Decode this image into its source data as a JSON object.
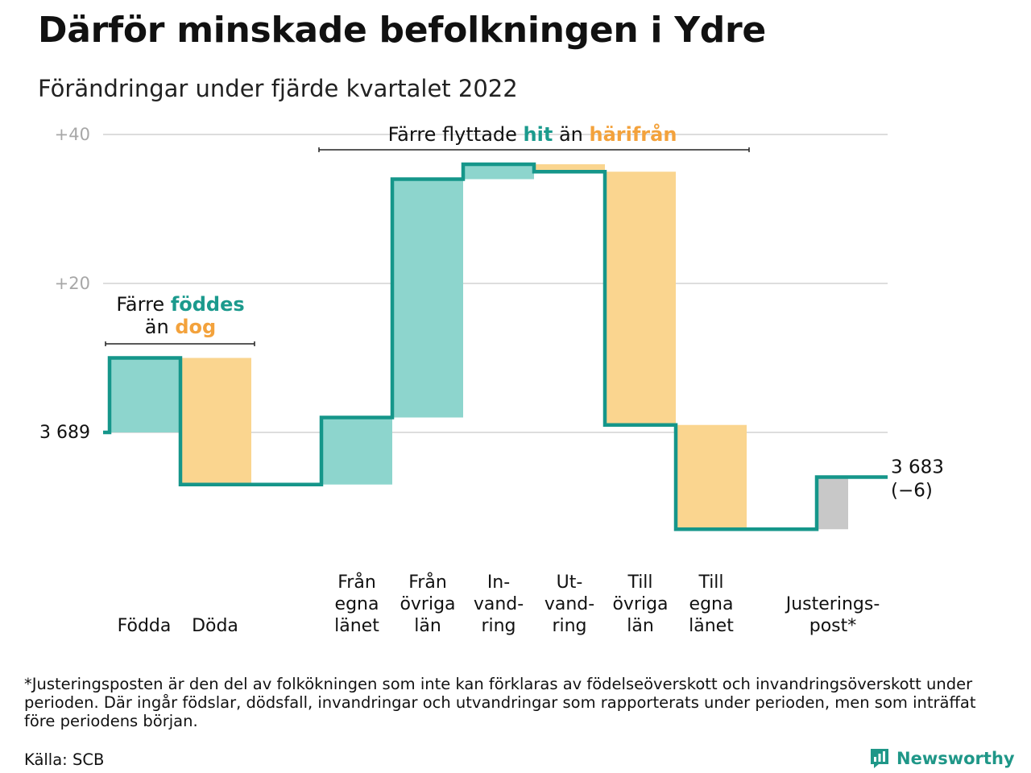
{
  "title": "Därför minskade befolkningen i Ydre",
  "subtitle": "Förändringar under fjärde kvartalet 2022",
  "colors": {
    "line": "#15968a",
    "plus": "#8dd5cd",
    "minus": "#fad58f",
    "adjust": "#c8c8c8",
    "hit": "#1b9a8d",
    "harifran": "#f3a23c",
    "grid": "#dddddd",
    "ticktext": "#a7a7a7"
  },
  "chart_data": {
    "type": "waterfall",
    "title": "Därför minskade befolkningen i Ydre",
    "subtitle": "Förändringar under fjärde kvartalet 2022",
    "start_value": 3689,
    "start_label": "3 689",
    "end_value": 3683,
    "end_label": "3 683",
    "end_change_label": "(−6)",
    "y_tick_labels": [
      "+40",
      "+20"
    ],
    "y_ticks": [
      40,
      20
    ],
    "ylim": [
      -15,
      40
    ],
    "grid": true,
    "steps": [
      {
        "label": "Födda",
        "value": 10,
        "kind": "plus"
      },
      {
        "label": "Döda",
        "value": -17,
        "kind": "minus"
      },
      {
        "label": "Från egna länet",
        "value": 9,
        "kind": "plus"
      },
      {
        "label": "Från övriga län",
        "value": 32,
        "kind": "plus"
      },
      {
        "label": "In-vandring",
        "value": 2,
        "kind": "plus"
      },
      {
        "label": "Ut-vandring",
        "value": -1,
        "kind": "minus"
      },
      {
        "label": "Till övriga län",
        "value": -34,
        "kind": "minus"
      },
      {
        "label": "Till egna länet",
        "value": -14,
        "kind": "minus"
      },
      {
        "label": "Justerings-post*",
        "value": 7,
        "kind": "adjust"
      }
    ],
    "annotations": [
      {
        "id": "fodda",
        "parts": [
          "Färre ",
          "föddes",
          "än ",
          "dog"
        ]
      },
      {
        "id": "flytt",
        "parts": [
          "Färre flyttade ",
          "hit",
          " än ",
          "härifrån"
        ]
      }
    ]
  },
  "x_label_lines": [
    [
      "Födda"
    ],
    [
      "Döda"
    ],
    [
      "Från",
      "egna",
      "länet"
    ],
    [
      "Från",
      "övriga",
      "län"
    ],
    [
      "In-",
      "vand-",
      "ring"
    ],
    [
      "Ut-",
      "vand-",
      "ring"
    ],
    [
      "Till",
      "övriga",
      "län"
    ],
    [
      "Till",
      "egna",
      "länet"
    ],
    [
      "Justerings-",
      "post*"
    ]
  ],
  "footnote": "*Justeringsposten är den del av folkökningen som inte kan förklaras av födelseöverskott och invandringsöverskott under perioden. Där ingår födslar, dödsfall, invandringar och utvandringar som rapporterats under perioden, men som inträffat före periodens början.",
  "source": "Källa: SCB",
  "logo": {
    "name": "Newsworthy",
    "icon": "newsworthy-logo-icon"
  }
}
